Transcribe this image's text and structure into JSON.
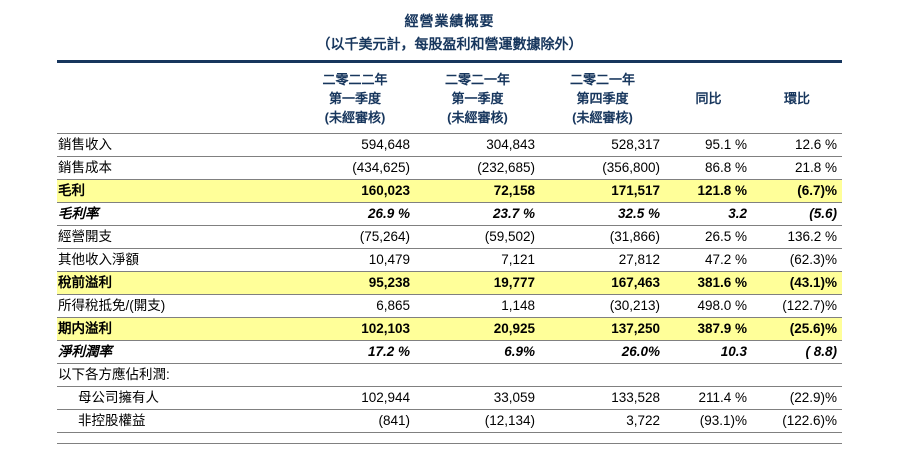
{
  "header": {
    "title": "經營業績概要",
    "subtitle": "（以千美元計，每股盈利和營運數據除外）"
  },
  "table": {
    "columns": [
      "二零二二年\n第一季度\n(未經審核)",
      "二零二一年\n第一季度\n(未經審核)",
      "二零二一年\n第四季度\n(未經審核)",
      "同比",
      "環比"
    ],
    "rows": [
      {
        "label": "銷售收入",
        "values": [
          "594,648",
          "304,843",
          "528,317",
          "95.1 %",
          "12.6 %"
        ],
        "style": "normal"
      },
      {
        "label": "銷售成本",
        "values": [
          "(434,625)",
          "(232,685)",
          "(356,800)",
          "86.8 %",
          "21.8 %"
        ],
        "style": "normal"
      },
      {
        "label": "毛利",
        "values": [
          "160,023",
          "72,158",
          "171,517",
          "121.8 %",
          "(6.7)%"
        ],
        "style": "highlight"
      },
      {
        "label": "毛利率",
        "values": [
          "26.9 %",
          "23.7 %",
          "32.5 %",
          "3.2",
          "(5.6)"
        ],
        "style": "italic"
      },
      {
        "label": "經營開支",
        "values": [
          "(75,264)",
          "(59,502)",
          "(31,866)",
          "26.5 %",
          "136.2 %"
        ],
        "style": "normal"
      },
      {
        "label": "其他收入淨額",
        "values": [
          "10,479",
          "7,121",
          "27,812",
          "47.2 %",
          "(62.3)%"
        ],
        "style": "normal"
      },
      {
        "label": "稅前溢利",
        "values": [
          "95,238",
          "19,777",
          "167,463",
          "381.6 %",
          "(43.1)%"
        ],
        "style": "highlight"
      },
      {
        "label": "所得稅抵免/(開支)",
        "values": [
          "6,865",
          "1,148",
          "(30,213)",
          "498.0 %",
          "(122.7)%"
        ],
        "style": "normal"
      },
      {
        "label": "期内溢利",
        "values": [
          "102,103",
          "20,925",
          "137,250",
          "387.9 %",
          "(25.6)%"
        ],
        "style": "highlight"
      },
      {
        "label": "淨利潤率",
        "values": [
          "17.2 %",
          "6.9%",
          "26.0%",
          "10.3",
          "( 8.8)"
        ],
        "style": "italic"
      },
      {
        "label": "以下各方應佔利潤:",
        "values": [
          "",
          "",
          "",
          "",
          ""
        ],
        "style": "section"
      },
      {
        "label": "母公司擁有人",
        "values": [
          "102,944",
          "33,059",
          "133,528",
          "211.4 %",
          "(22.9)%"
        ],
        "style": "indent"
      },
      {
        "label": "非控股權益",
        "values": [
          "(841)",
          "(12,134)",
          "3,722",
          "(93.1)%",
          "(122.6)%"
        ],
        "style": "indent"
      }
    ]
  },
  "colors": {
    "navy": "#17365D",
    "highlight_yellow": "#FFFF99",
    "rule_gray": "#808080"
  }
}
